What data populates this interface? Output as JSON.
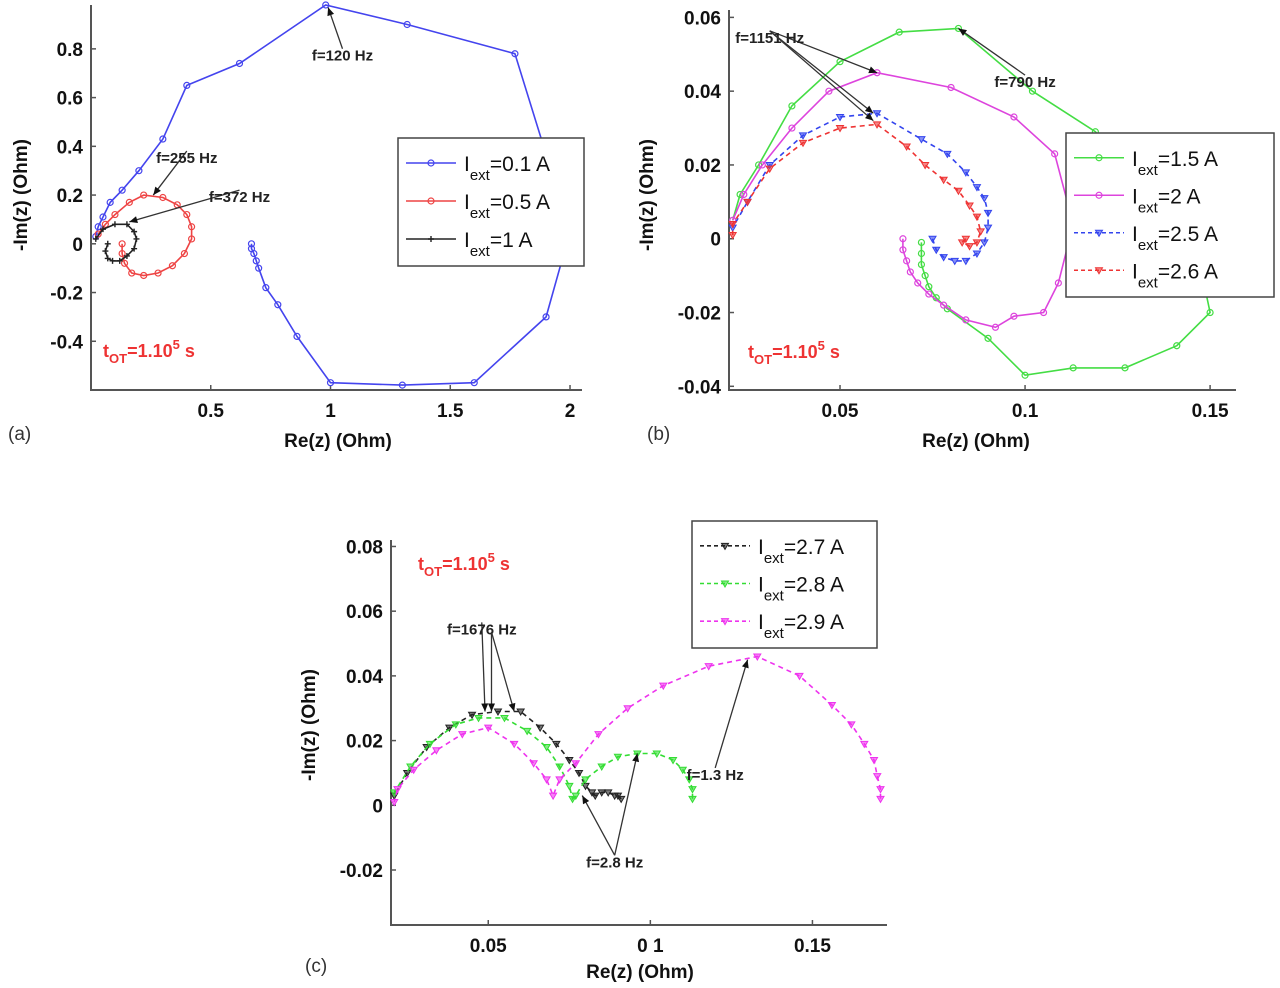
{
  "chart_data": [
    {
      "id": "a",
      "panel_label": "(a)",
      "type": "line",
      "title": "",
      "xlabel": "Re(z) (Ohm)",
      "ylabel": "-Im(z) (Ohm)",
      "xlim": [
        0.0,
        2.05
      ],
      "ylim": [
        -0.6,
        0.98
      ],
      "xticks": [
        0.5,
        1,
        1.5,
        2
      ],
      "xtick_labels": [
        "0.5",
        "1",
        "1.5",
        "2"
      ],
      "yticks": [
        -0.4,
        -0.2,
        0,
        0.2,
        0.4,
        0.6,
        0.8
      ],
      "ytick_labels": [
        "-0.4",
        "-0.2",
        "0",
        "0.2",
        "0.4",
        "0.6",
        "0.8"
      ],
      "grid": false,
      "legend_position": "right-middle",
      "annotation_text": "t_OT=1.10^5 s",
      "annotations": [
        {
          "text": "f=120 Hz",
          "text_x": 1.05,
          "text_y": 0.78,
          "arrow_to": [
            0.99,
            0.97
          ]
        },
        {
          "text": "f=255 Hz",
          "text_x": 0.4,
          "text_y": 0.36,
          "arrow_to": [
            0.26,
            0.2
          ]
        },
        {
          "text": "f=372 Hz",
          "text_x": 0.62,
          "text_y": 0.2,
          "arrow_to": [
            0.16,
            0.09
          ]
        }
      ],
      "series": [
        {
          "name": "I_ext=0.1 A",
          "label_main": "I",
          "label_sub": "ext",
          "label_tail": "=0.1 A",
          "color": "#4444ee",
          "dash": "solid",
          "marker": "circle",
          "x": [
            0.67,
            0.67,
            0.68,
            0.69,
            0.7,
            0.73,
            0.78,
            0.86,
            1.0,
            1.3,
            1.6,
            1.9,
            2.0,
            1.77,
            1.32,
            0.98,
            0.62,
            0.4,
            0.3,
            0.2,
            0.13,
            0.08,
            0.05,
            0.03,
            0.02
          ],
          "y": [
            0.0,
            -0.02,
            -0.04,
            -0.07,
            -0.1,
            -0.18,
            -0.25,
            -0.38,
            -0.57,
            -0.58,
            -0.57,
            -0.3,
            0.05,
            0.78,
            0.9,
            0.98,
            0.74,
            0.65,
            0.43,
            0.3,
            0.22,
            0.17,
            0.11,
            0.07,
            0.03
          ]
        },
        {
          "name": "I_ext=0.5 A",
          "label_main": "I",
          "label_sub": "ext",
          "label_tail": "=0.5 A",
          "color": "#ee4444",
          "dash": "solid",
          "marker": "circle",
          "x": [
            0.13,
            0.13,
            0.14,
            0.17,
            0.22,
            0.28,
            0.34,
            0.39,
            0.42,
            0.42,
            0.4,
            0.36,
            0.3,
            0.22,
            0.16,
            0.1,
            0.06,
            0.03
          ],
          "y": [
            0.0,
            -0.04,
            -0.08,
            -0.12,
            -0.13,
            -0.12,
            -0.09,
            -0.04,
            0.02,
            0.07,
            0.12,
            0.16,
            0.19,
            0.2,
            0.17,
            0.12,
            0.08,
            0.04
          ]
        },
        {
          "name": "I_ext=1 A",
          "label_main": "I",
          "label_sub": "ext",
          "label_tail": "=1 A",
          "color": "#222222",
          "dash": "solid",
          "marker": "plus",
          "x": [
            0.07,
            0.06,
            0.07,
            0.09,
            0.12,
            0.15,
            0.18,
            0.19,
            0.18,
            0.15,
            0.1,
            0.05,
            0.02
          ],
          "y": [
            0.0,
            -0.03,
            -0.06,
            -0.07,
            -0.07,
            -0.05,
            -0.02,
            0.02,
            0.05,
            0.08,
            0.08,
            0.06,
            0.02
          ]
        }
      ]
    },
    {
      "id": "b",
      "panel_label": "(b)",
      "type": "line",
      "title": "",
      "xlabel": "Re(z) (Ohm)",
      "ylabel": "-Im(z) (Ohm)",
      "xlim": [
        0.02,
        0.157
      ],
      "ylim": [
        -0.041,
        0.062
      ],
      "xticks": [
        0.05,
        0.1,
        0.15
      ],
      "xtick_labels": [
        "0.05",
        "0.1",
        "0.15"
      ],
      "yticks": [
        -0.04,
        -0.02,
        0,
        0.02,
        0.04,
        0.06
      ],
      "ytick_labels": [
        "-0.04",
        "-0.02",
        "0",
        "0.02",
        "0.04",
        "0.06"
      ],
      "grid": false,
      "legend_position": "right-middle",
      "annotation_text": "t_OT=1.10^5 s",
      "annotations": [
        {
          "text": "f=1151 Hz",
          "text_x": 0.031,
          "text_y": 0.055,
          "arrow_to": [
            0.06,
            0.045
          ]
        },
        {
          "text": "",
          "text_x": 0.031,
          "text_y": 0.055,
          "arrow_to": [
            0.059,
            0.034
          ]
        },
        {
          "text": "",
          "text_x": 0.031,
          "text_y": 0.055,
          "arrow_to": [
            0.059,
            0.032
          ]
        },
        {
          "text": "f=790 Hz",
          "text_x": 0.1,
          "text_y": 0.043,
          "arrow_to": [
            0.082,
            0.057
          ]
        }
      ],
      "series": [
        {
          "name": "I_ext=1.5 A",
          "label_main": "I",
          "label_sub": "ext",
          "label_tail": "=1.5 A",
          "color": "#44dd44",
          "dash": "solid",
          "marker": "circle",
          "x": [
            0.072,
            0.072,
            0.072,
            0.073,
            0.074,
            0.076,
            0.079,
            0.09,
            0.1,
            0.113,
            0.127,
            0.141,
            0.15,
            0.146,
            0.136,
            0.119,
            0.102,
            0.082,
            0.066,
            0.05,
            0.037,
            0.028,
            0.023,
            0.021
          ],
          "y": [
            -0.001,
            -0.004,
            -0.007,
            -0.01,
            -0.013,
            -0.016,
            -0.019,
            -0.027,
            -0.037,
            -0.035,
            -0.035,
            -0.029,
            -0.02,
            -0.001,
            0.01,
            0.029,
            0.04,
            0.057,
            0.056,
            0.048,
            0.036,
            0.02,
            0.012,
            0.005
          ]
        },
        {
          "name": "I_ext=2 A",
          "label_main": "I",
          "label_sub": "ext",
          "label_tail": "=2 A",
          "color": "#dd44dd",
          "dash": "solid",
          "marker": "circle",
          "x": [
            0.067,
            0.067,
            0.068,
            0.069,
            0.071,
            0.074,
            0.078,
            0.084,
            0.092,
            0.097,
            0.105,
            0.109,
            0.113,
            0.108,
            0.097,
            0.08,
            0.06,
            0.047,
            0.037,
            0.029,
            0.024,
            0.021
          ],
          "y": [
            0.0,
            -0.003,
            -0.006,
            -0.009,
            -0.012,
            -0.015,
            -0.018,
            -0.022,
            -0.024,
            -0.021,
            -0.02,
            -0.012,
            0.004,
            0.023,
            0.033,
            0.041,
            0.045,
            0.04,
            0.03,
            0.02,
            0.012,
            0.005
          ]
        },
        {
          "name": "I_ext=2.5 A",
          "label_main": "I",
          "label_sub": "ext",
          "label_tail": "=2.5 A",
          "color": "#3344ee",
          "dash": "dashed",
          "marker": "triangle-down",
          "x": [
            0.075,
            0.076,
            0.078,
            0.081,
            0.084,
            0.087,
            0.089,
            0.09,
            0.09,
            0.089,
            0.087,
            0.084,
            0.079,
            0.072,
            0.06,
            0.05,
            0.04,
            0.031,
            0.025,
            0.021
          ],
          "y": [
            0.0,
            -0.003,
            -0.005,
            -0.006,
            -0.006,
            -0.004,
            -0.001,
            0.003,
            0.007,
            0.011,
            0.014,
            0.018,
            0.023,
            0.027,
            0.034,
            0.033,
            0.028,
            0.02,
            0.01,
            0.003
          ]
        },
        {
          "name": "I_ext=2.6 A",
          "label_main": "I",
          "label_sub": "ext",
          "label_tail": "=2.6 A",
          "color": "#ee3333",
          "dash": "dashed",
          "marker": "triangle-down",
          "x": [
            0.084,
            0.083,
            0.085,
            0.087,
            0.088,
            0.087,
            0.085,
            0.082,
            0.078,
            0.073,
            0.068,
            0.06,
            0.05,
            0.04,
            0.031,
            0.025,
            0.021,
            0.021
          ],
          "y": [
            0.0,
            -0.001,
            -0.002,
            -0.001,
            0.002,
            0.006,
            0.009,
            0.013,
            0.016,
            0.02,
            0.025,
            0.031,
            0.03,
            0.026,
            0.019,
            0.01,
            0.004,
            0.001
          ]
        }
      ]
    },
    {
      "id": "c",
      "panel_label": "(c)",
      "type": "line",
      "title": "",
      "xlabel": "Re(z) (Ohm)",
      "ylabel": "-Im(z) (Ohm)",
      "xlim": [
        0.02,
        0.173
      ],
      "ylim": [
        -0.037,
        0.082
      ],
      "xticks": [
        0.05,
        0.1,
        0.15
      ],
      "xtick_labels": [
        "0.05",
        "0 1",
        "0.15"
      ],
      "yticks": [
        -0.02,
        0,
        0.02,
        0.04,
        0.06,
        0.08
      ],
      "ytick_labels": [
        "-0.02",
        "0",
        "0.02",
        "0.04",
        "0.06",
        "0.08"
      ],
      "grid": false,
      "legend_position": "upper-right",
      "annotation_text": "t_OT=1.10^5 s",
      "annotations": [
        {
          "text": "f=1676 Hz",
          "text_x": 0.048,
          "text_y": 0.055,
          "arrow_to": [
            0.049,
            0.029
          ]
        },
        {
          "text": "",
          "text_x": 0.051,
          "text_y": 0.052,
          "arrow_to": [
            0.051,
            0.029
          ]
        },
        {
          "text": "",
          "text_x": 0.051,
          "text_y": 0.052,
          "arrow_to": [
            0.058,
            0.029
          ]
        },
        {
          "text": "f=1.3 Hz",
          "text_x": 0.12,
          "text_y": 0.01,
          "arrow_to": [
            0.13,
            0.045
          ]
        },
        {
          "text": "f=2.8 Hz",
          "text_x": 0.089,
          "text_y": -0.017,
          "arrow_to": [
            0.096,
            0.016
          ]
        },
        {
          "text": "",
          "text_x": 0.089,
          "text_y": -0.017,
          "arrow_to": [
            0.079,
            0.003
          ]
        }
      ],
      "series": [
        {
          "name": "I_ext=2.7 A",
          "label_main": "I",
          "label_sub": "ext",
          "label_tail": "=2.7 A",
          "color": "#222222",
          "dash": "dashed",
          "marker": "triangle-down",
          "x": [
            0.091,
            0.09,
            0.089,
            0.087,
            0.085,
            0.083,
            0.082,
            0.08,
            0.078,
            0.075,
            0.071,
            0.066,
            0.06,
            0.053,
            0.045,
            0.038,
            0.031,
            0.025,
            0.021
          ],
          "y": [
            0.002,
            0.003,
            0.003,
            0.004,
            0.004,
            0.003,
            0.004,
            0.006,
            0.01,
            0.014,
            0.019,
            0.024,
            0.029,
            0.029,
            0.028,
            0.024,
            0.018,
            0.01,
            0.003
          ]
        },
        {
          "name": "I_ext=2.8 A",
          "label_main": "I",
          "label_sub": "ext",
          "label_tail": "=2.8 A",
          "color": "#33dd33",
          "dash": "dashed",
          "marker": "triangle-down",
          "x": [
            0.113,
            0.113,
            0.112,
            0.11,
            0.107,
            0.102,
            0.096,
            0.09,
            0.085,
            0.08,
            0.077,
            0.076,
            0.075,
            0.072,
            0.068,
            0.062,
            0.055,
            0.047,
            0.04,
            0.032,
            0.026,
            0.021
          ],
          "y": [
            0.002,
            0.005,
            0.008,
            0.011,
            0.014,
            0.016,
            0.016,
            0.015,
            0.012,
            0.008,
            0.003,
            0.002,
            0.006,
            0.012,
            0.018,
            0.023,
            0.027,
            0.027,
            0.025,
            0.019,
            0.012,
            0.004
          ]
        },
        {
          "name": "I_ext=2.9 A",
          "label_main": "I",
          "label_sub": "ext",
          "label_tail": "=2.9 A",
          "color": "#ee33ee",
          "dash": "dashed",
          "marker": "triangle-down",
          "x": [
            0.171,
            0.171,
            0.17,
            0.169,
            0.166,
            0.162,
            0.156,
            0.146,
            0.133,
            0.118,
            0.104,
            0.093,
            0.084,
            0.077,
            0.072,
            0.07,
            0.068,
            0.064,
            0.058,
            0.05,
            0.042,
            0.034,
            0.027,
            0.022,
            0.021
          ],
          "y": [
            0.002,
            0.005,
            0.009,
            0.014,
            0.019,
            0.025,
            0.031,
            0.04,
            0.046,
            0.043,
            0.037,
            0.03,
            0.022,
            0.013,
            0.008,
            0.003,
            0.008,
            0.013,
            0.019,
            0.024,
            0.022,
            0.017,
            0.011,
            0.005,
            0.001
          ]
        }
      ]
    }
  ],
  "panels": {
    "a": {
      "label": "(a)",
      "xlabel": "Re(z) (Ohm)",
      "ylabel": "-Im(z) (Ohm)",
      "tot_main": "t",
      "tot_sub": "OT",
      "tot_tail": "=1.10",
      "tot_sup": "5",
      "tot_unit": " s"
    },
    "b": {
      "label": "(b)",
      "xlabel": "Re(z) (Ohm)",
      "ylabel": "-Im(z) (Ohm)",
      "tot_main": "t",
      "tot_sub": "OT",
      "tot_tail": "=1.10",
      "tot_sup": "5",
      "tot_unit": " s"
    },
    "c": {
      "label": "(c)",
      "xlabel": "Re(z) (Ohm)",
      "ylabel": "-Im(z) (Ohm)",
      "tot_main": "t",
      "tot_sub": "OT",
      "tot_tail": "=1.10",
      "tot_sup": "5",
      "tot_unit": " s"
    }
  }
}
